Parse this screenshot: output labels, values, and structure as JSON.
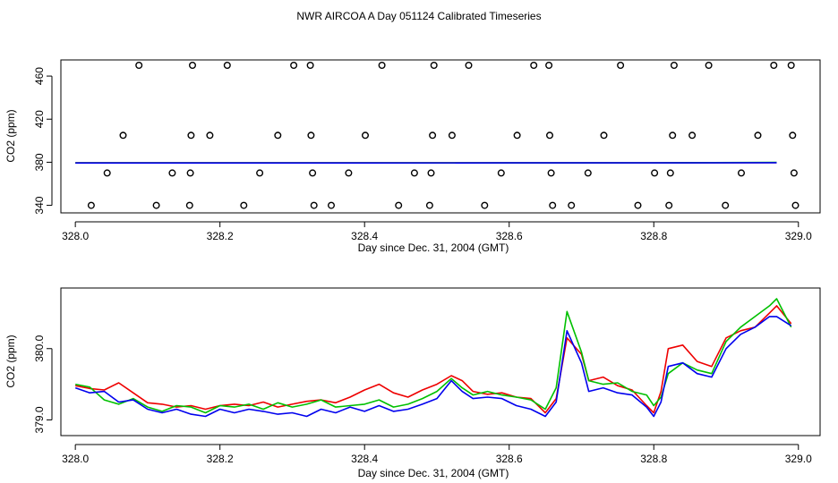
{
  "title": "NWR AIRCOA A  Day 051124  Calibrated Timeseries",
  "colors": {
    "red": "#ee0000",
    "green": "#00c000",
    "blue": "#0000ee",
    "axis": "#000000"
  },
  "chart_data": [
    {
      "type": "scatter",
      "xlabel": "Day since Dec. 31, 2004 (GMT)",
      "ylabel": "CO2 (ppm)",
      "xlim": [
        327.98,
        329.03
      ],
      "ylim": [
        333,
        475
      ],
      "xticks": [
        328.0,
        328.2,
        328.4,
        328.6,
        328.8,
        329.0
      ],
      "xtick_labels": [
        "328.0",
        "328.2",
        "328.4",
        "328.6",
        "328.8",
        "329.0"
      ],
      "yticks": [
        340,
        380,
        420,
        460
      ],
      "ytick_labels": [
        "340",
        "380",
        "420",
        "460"
      ],
      "points": [
        {
          "x": 328.022,
          "y": 340
        },
        {
          "x": 328.044,
          "y": 370
        },
        {
          "x": 328.066,
          "y": 405
        },
        {
          "x": 328.088,
          "y": 470
        },
        {
          "x": 328.112,
          "y": 340
        },
        {
          "x": 328.134,
          "y": 370
        },
        {
          "x": 328.158,
          "y": 340
        },
        {
          "x": 328.159,
          "y": 370
        },
        {
          "x": 328.16,
          "y": 405
        },
        {
          "x": 328.162,
          "y": 470
        },
        {
          "x": 328.186,
          "y": 405
        },
        {
          "x": 328.21,
          "y": 470
        },
        {
          "x": 328.233,
          "y": 340
        },
        {
          "x": 328.255,
          "y": 370
        },
        {
          "x": 328.28,
          "y": 405
        },
        {
          "x": 328.302,
          "y": 470
        },
        {
          "x": 328.325,
          "y": 470
        },
        {
          "x": 328.326,
          "y": 405
        },
        {
          "x": 328.328,
          "y": 370
        },
        {
          "x": 328.33,
          "y": 340
        },
        {
          "x": 328.354,
          "y": 340
        },
        {
          "x": 328.378,
          "y": 370
        },
        {
          "x": 328.401,
          "y": 405
        },
        {
          "x": 328.424,
          "y": 470
        },
        {
          "x": 328.447,
          "y": 340
        },
        {
          "x": 328.469,
          "y": 370
        },
        {
          "x": 328.49,
          "y": 340
        },
        {
          "x": 328.492,
          "y": 370
        },
        {
          "x": 328.494,
          "y": 405
        },
        {
          "x": 328.496,
          "y": 470
        },
        {
          "x": 328.521,
          "y": 405
        },
        {
          "x": 328.544,
          "y": 470
        },
        {
          "x": 328.566,
          "y": 340
        },
        {
          "x": 328.589,
          "y": 370
        },
        {
          "x": 328.611,
          "y": 405
        },
        {
          "x": 328.634,
          "y": 470
        },
        {
          "x": 328.655,
          "y": 470
        },
        {
          "x": 328.656,
          "y": 405
        },
        {
          "x": 328.658,
          "y": 370
        },
        {
          "x": 328.66,
          "y": 340
        },
        {
          "x": 328.686,
          "y": 340
        },
        {
          "x": 328.709,
          "y": 370
        },
        {
          "x": 328.731,
          "y": 405
        },
        {
          "x": 328.754,
          "y": 470
        },
        {
          "x": 328.778,
          "y": 340
        },
        {
          "x": 328.801,
          "y": 370
        },
        {
          "x": 328.821,
          "y": 340
        },
        {
          "x": 328.823,
          "y": 370
        },
        {
          "x": 328.826,
          "y": 405
        },
        {
          "x": 328.828,
          "y": 470
        },
        {
          "x": 328.853,
          "y": 405
        },
        {
          "x": 328.876,
          "y": 470
        },
        {
          "x": 328.899,
          "y": 340
        },
        {
          "x": 328.921,
          "y": 370
        },
        {
          "x": 328.944,
          "y": 405
        },
        {
          "x": 328.966,
          "y": 470
        },
        {
          "x": 328.99,
          "y": 470
        },
        {
          "x": 328.992,
          "y": 405
        },
        {
          "x": 328.994,
          "y": 370
        },
        {
          "x": 328.996,
          "y": 340
        }
      ],
      "series": [
        {
          "name": "red",
          "color": "#ee0000",
          "x": [
            328.0,
            328.2,
            328.4,
            328.6,
            328.8,
            328.97
          ],
          "values": [
            379.4,
            379.4,
            379.4,
            379.4,
            379.5,
            379.7
          ]
        },
        {
          "name": "green",
          "color": "#00c000",
          "x": [
            328.0,
            328.2,
            328.4,
            328.6,
            328.8,
            328.97
          ],
          "values": [
            379.4,
            379.4,
            379.4,
            379.4,
            379.5,
            379.8
          ]
        },
        {
          "name": "blue",
          "color": "#0000ee",
          "x": [
            328.0,
            328.2,
            328.4,
            328.6,
            328.8,
            328.97
          ],
          "values": [
            379.3,
            379.3,
            379.3,
            379.4,
            379.4,
            379.6
          ]
        }
      ]
    },
    {
      "type": "line",
      "xlabel": "Day since Dec. 31, 2004 (GMT)",
      "ylabel": "CO2 (ppm)",
      "xlim": [
        327.98,
        329.03
      ],
      "ylim": [
        378.78,
        380.85
      ],
      "xticks": [
        328.0,
        328.2,
        328.4,
        328.6,
        328.8,
        329.0
      ],
      "xtick_labels": [
        "328.0",
        "328.2",
        "328.4",
        "328.6",
        "328.8",
        "329.0"
      ],
      "yticks": [
        379.0,
        380.0
      ],
      "ytick_labels": [
        "379.0",
        "380.0"
      ],
      "x": [
        328.0,
        328.02,
        328.04,
        328.06,
        328.08,
        328.1,
        328.12,
        328.14,
        328.16,
        328.18,
        328.2,
        328.22,
        328.24,
        328.26,
        328.28,
        328.3,
        328.32,
        328.34,
        328.36,
        328.38,
        328.4,
        328.42,
        328.44,
        328.46,
        328.48,
        328.5,
        328.52,
        328.535,
        328.55,
        328.57,
        328.59,
        328.61,
        328.63,
        328.65,
        328.665,
        328.68,
        328.7,
        328.71,
        328.73,
        328.75,
        328.77,
        328.79,
        328.8,
        328.81,
        328.82,
        328.84,
        328.86,
        328.88,
        328.9,
        328.92,
        328.94,
        328.96,
        328.97,
        328.99
      ],
      "series": [
        {
          "name": "red",
          "color": "#ee0000",
          "values": [
            379.48,
            379.44,
            379.42,
            379.52,
            379.38,
            379.24,
            379.22,
            379.18,
            379.2,
            379.15,
            379.2,
            379.22,
            379.2,
            379.25,
            379.18,
            379.22,
            379.26,
            379.28,
            379.24,
            379.32,
            379.42,
            379.5,
            379.38,
            379.32,
            379.42,
            379.5,
            379.62,
            379.55,
            379.4,
            379.36,
            379.38,
            379.32,
            379.3,
            379.1,
            379.3,
            380.15,
            379.92,
            379.55,
            379.6,
            379.48,
            379.42,
            379.2,
            379.1,
            379.4,
            380.0,
            380.05,
            379.82,
            379.75,
            380.15,
            380.25,
            380.3,
            380.5,
            380.6,
            380.35
          ]
        },
        {
          "name": "green",
          "color": "#00c000",
          "values": [
            379.5,
            379.46,
            379.28,
            379.22,
            379.3,
            379.18,
            379.12,
            379.2,
            379.18,
            379.1,
            379.2,
            379.18,
            379.22,
            379.15,
            379.24,
            379.18,
            379.22,
            379.28,
            379.18,
            379.2,
            379.22,
            379.28,
            379.18,
            379.22,
            379.3,
            379.4,
            379.58,
            379.45,
            379.35,
            379.4,
            379.35,
            379.32,
            379.28,
            379.15,
            379.45,
            380.52,
            379.95,
            379.55,
            379.5,
            379.52,
            379.4,
            379.35,
            379.2,
            379.32,
            379.65,
            379.8,
            379.7,
            379.65,
            380.1,
            380.3,
            380.45,
            380.6,
            380.7,
            380.3
          ]
        },
        {
          "name": "blue",
          "color": "#0000ee",
          "values": [
            379.45,
            379.38,
            379.4,
            379.25,
            379.28,
            379.15,
            379.1,
            379.15,
            379.08,
            379.05,
            379.15,
            379.1,
            379.15,
            379.12,
            379.08,
            379.1,
            379.05,
            379.15,
            379.1,
            379.18,
            379.12,
            379.2,
            379.12,
            379.15,
            379.22,
            379.3,
            379.55,
            379.4,
            379.3,
            379.32,
            379.3,
            379.2,
            379.15,
            379.05,
            379.25,
            380.25,
            379.8,
            379.4,
            379.45,
            379.38,
            379.35,
            379.18,
            379.05,
            379.25,
            379.75,
            379.8,
            379.65,
            379.6,
            380.0,
            380.2,
            380.3,
            380.45,
            380.45,
            380.32
          ]
        }
      ]
    }
  ]
}
